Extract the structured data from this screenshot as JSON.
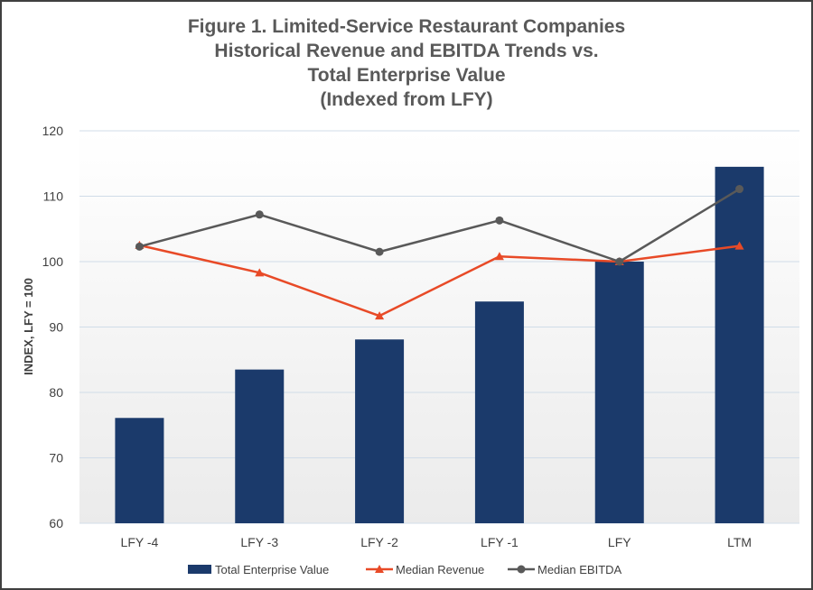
{
  "chart_data": {
    "type": "bar",
    "title_lines": [
      "Figure 1. Limited-Service Restaurant Companies",
      "Historical Revenue and EBITDA Trends vs.",
      "Total Enterprise Value",
      "(Indexed from LFY)"
    ],
    "xlabel": "",
    "ylabel": "INDEX, LFY = 100",
    "ylim": [
      60,
      120
    ],
    "yticks": [
      60,
      70,
      80,
      90,
      100,
      110,
      120
    ],
    "categories": [
      "LFY -4",
      "LFY -3",
      "LFY -2",
      "LFY -1",
      "LFY",
      "LTM"
    ],
    "grid": true,
    "legend_position": "bottom",
    "series": [
      {
        "name": "Total Enterprise Value",
        "type": "bar",
        "color": "#1b3a6b",
        "values": [
          76.1,
          83.5,
          88.1,
          93.9,
          100.0,
          114.5
        ]
      },
      {
        "name": "Median Revenue",
        "type": "line",
        "marker": "triangle",
        "color": "#e84a27",
        "values": [
          102.5,
          98.3,
          91.7,
          100.8,
          100.0,
          102.4
        ]
      },
      {
        "name": "Median EBITDA",
        "type": "line",
        "marker": "circle",
        "color": "#595959",
        "values": [
          102.3,
          107.2,
          101.5,
          106.3,
          100.0,
          111.1
        ]
      }
    ]
  }
}
